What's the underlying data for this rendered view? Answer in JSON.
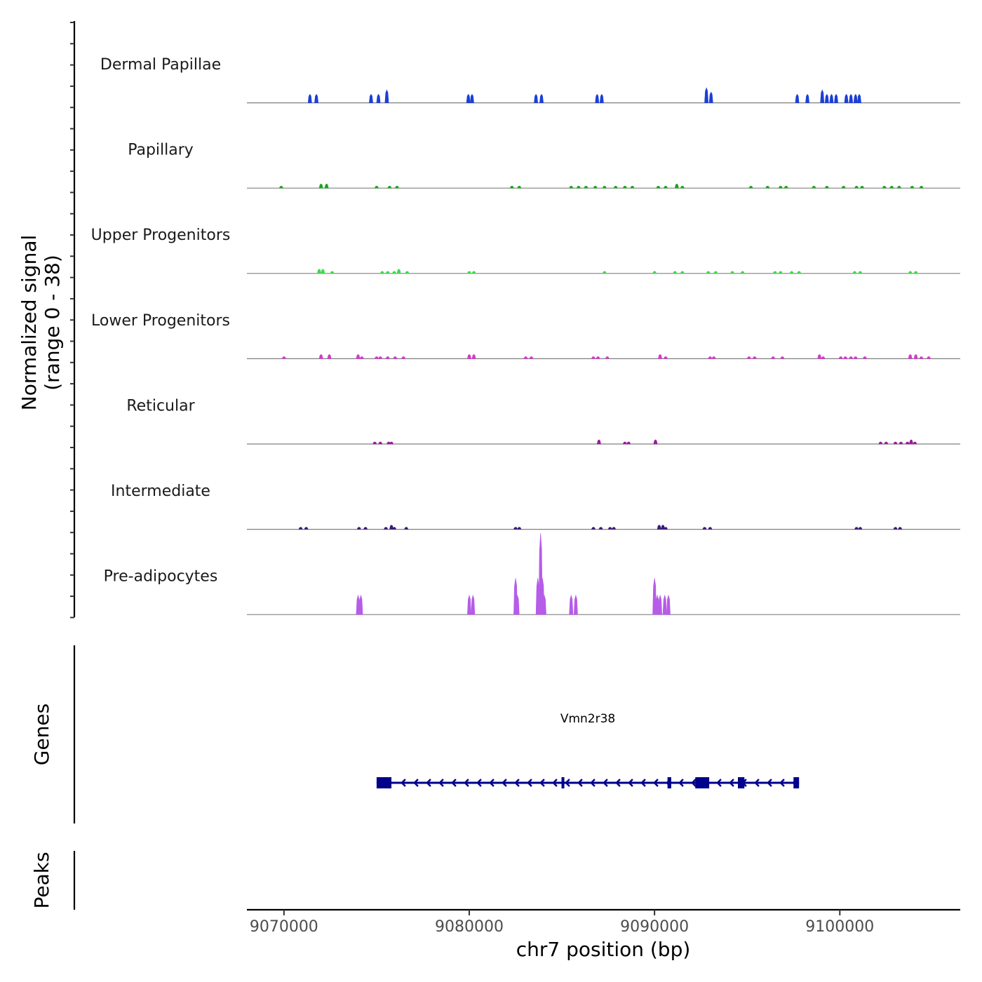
{
  "chart_data": {
    "type": "coverage",
    "chromosome": "chr7",
    "region": [
      9068000,
      9106500
    ],
    "signal_axis": {
      "title_line1": "Normalized signal",
      "title_line2": "(range 0 - 38)",
      "ylim": [
        0,
        38
      ]
    },
    "tracks": [
      {
        "name": "Dermal Papillae",
        "color": "#1c3fd6",
        "peaks": [
          [
            9071400,
            4
          ],
          [
            9071750,
            4
          ],
          [
            9074700,
            4
          ],
          [
            9075100,
            4
          ],
          [
            9075550,
            6
          ],
          [
            9079950,
            4
          ],
          [
            9080150,
            4
          ],
          [
            9083600,
            4
          ],
          [
            9083900,
            4
          ],
          [
            9086900,
            4
          ],
          [
            9087150,
            4
          ],
          [
            9092800,
            7
          ],
          [
            9093050,
            5
          ],
          [
            9097700,
            4
          ],
          [
            9098250,
            4
          ],
          [
            9099050,
            6
          ],
          [
            9099300,
            4
          ],
          [
            9099550,
            4
          ],
          [
            9099800,
            4
          ],
          [
            9100350,
            4
          ],
          [
            9100600,
            4
          ],
          [
            9100850,
            4
          ],
          [
            9101050,
            4
          ]
        ]
      },
      {
        "name": "Papillary",
        "color": "#1fa31f",
        "peaks": [
          [
            9069850,
            1
          ],
          [
            9072000,
            2
          ],
          [
            9072300,
            2
          ],
          [
            9075000,
            1
          ],
          [
            9075700,
            1
          ],
          [
            9076100,
            1
          ],
          [
            9082300,
            1
          ],
          [
            9082700,
            1
          ],
          [
            9085500,
            1
          ],
          [
            9085900,
            1
          ],
          [
            9086300,
            1
          ],
          [
            9086800,
            1
          ],
          [
            9087300,
            1
          ],
          [
            9087900,
            1
          ],
          [
            9088400,
            1
          ],
          [
            9088800,
            1
          ],
          [
            9090200,
            1
          ],
          [
            9090600,
            1
          ],
          [
            9091200,
            2
          ],
          [
            9091500,
            1
          ],
          [
            9095200,
            1
          ],
          [
            9096100,
            1
          ],
          [
            9096800,
            1
          ],
          [
            9097100,
            1
          ],
          [
            9098600,
            1
          ],
          [
            9099300,
            1
          ],
          [
            9100200,
            1
          ],
          [
            9100900,
            1
          ],
          [
            9101200,
            1
          ],
          [
            9102400,
            1
          ],
          [
            9102800,
            1
          ],
          [
            9103200,
            1
          ],
          [
            9103900,
            1
          ],
          [
            9104400,
            1
          ]
        ]
      },
      {
        "name": "Upper Progenitors",
        "color": "#3dd94a",
        "peaks": [
          [
            9071900,
            2
          ],
          [
            9072100,
            2
          ],
          [
            9072600,
            1
          ],
          [
            9075300,
            1
          ],
          [
            9075600,
            1
          ],
          [
            9075950,
            1
          ],
          [
            9076200,
            2
          ],
          [
            9076650,
            1
          ],
          [
            9080000,
            1
          ],
          [
            9080250,
            1
          ],
          [
            9087300,
            1
          ],
          [
            9090000,
            1
          ],
          [
            9091100,
            1
          ],
          [
            9091500,
            1
          ],
          [
            9092900,
            1
          ],
          [
            9093300,
            1
          ],
          [
            9094200,
            1
          ],
          [
            9094750,
            1
          ],
          [
            9096500,
            1
          ],
          [
            9096800,
            1
          ],
          [
            9097400,
            1
          ],
          [
            9097800,
            1
          ],
          [
            9100800,
            1
          ],
          [
            9101100,
            1
          ],
          [
            9103800,
            1
          ],
          [
            9104100,
            1
          ]
        ]
      },
      {
        "name": "Lower Progenitors",
        "color": "#d63ac9",
        "peaks": [
          [
            9070000,
            1
          ],
          [
            9072000,
            2
          ],
          [
            9072450,
            2
          ],
          [
            9074000,
            2
          ],
          [
            9074200,
            1
          ],
          [
            9075000,
            1
          ],
          [
            9075200,
            1
          ],
          [
            9075600,
            1
          ],
          [
            9076000,
            1
          ],
          [
            9076450,
            1
          ],
          [
            9080000,
            2
          ],
          [
            9080250,
            2
          ],
          [
            9083050,
            1
          ],
          [
            9083350,
            1
          ],
          [
            9086700,
            1
          ],
          [
            9086950,
            1
          ],
          [
            9087450,
            1
          ],
          [
            9090300,
            2
          ],
          [
            9090600,
            1
          ],
          [
            9093000,
            1
          ],
          [
            9093200,
            1
          ],
          [
            9095100,
            1
          ],
          [
            9095400,
            1
          ],
          [
            9096400,
            1
          ],
          [
            9096900,
            1
          ],
          [
            9098900,
            2
          ],
          [
            9099100,
            1
          ],
          [
            9100050,
            1
          ],
          [
            9100300,
            1
          ],
          [
            9100600,
            1
          ],
          [
            9100850,
            1
          ],
          [
            9101350,
            1
          ],
          [
            9103800,
            2
          ],
          [
            9104100,
            2
          ],
          [
            9104400,
            1
          ],
          [
            9104800,
            1
          ]
        ]
      },
      {
        "name": "Reticular",
        "color": "#9a1a9a",
        "peaks": [
          [
            9074900,
            1
          ],
          [
            9075200,
            1
          ],
          [
            9075650,
            1
          ],
          [
            9075800,
            1
          ],
          [
            9087000,
            2
          ],
          [
            9088400,
            1
          ],
          [
            9088600,
            1
          ],
          [
            9090050,
            2
          ],
          [
            9102200,
            1
          ],
          [
            9102500,
            1
          ],
          [
            9103000,
            1
          ],
          [
            9103300,
            1
          ],
          [
            9103650,
            1
          ],
          [
            9103850,
            2
          ],
          [
            9104050,
            1
          ]
        ]
      },
      {
        "name": "Intermediate",
        "color": "#3a1a78",
        "peaks": [
          [
            9070900,
            1
          ],
          [
            9071200,
            1
          ],
          [
            9074050,
            1
          ],
          [
            9074400,
            1
          ],
          [
            9075500,
            1
          ],
          [
            9075800,
            2
          ],
          [
            9075950,
            1
          ],
          [
            9076600,
            1
          ],
          [
            9082500,
            1
          ],
          [
            9082700,
            1
          ],
          [
            9086700,
            1
          ],
          [
            9087100,
            1
          ],
          [
            9087600,
            1
          ],
          [
            9087800,
            1
          ],
          [
            9090250,
            2
          ],
          [
            9090450,
            2
          ],
          [
            9090600,
            1
          ],
          [
            9092700,
            1
          ],
          [
            9093000,
            1
          ],
          [
            9100900,
            1
          ],
          [
            9101100,
            1
          ],
          [
            9103000,
            1
          ],
          [
            9103250,
            1
          ]
        ]
      },
      {
        "name": "Pre-adipocytes",
        "color": "#b65ce8",
        "peaks": [
          [
            9074000,
            9
          ],
          [
            9074150,
            9
          ],
          [
            9080000,
            9
          ],
          [
            9080200,
            9
          ],
          [
            9082500,
            17
          ],
          [
            9082600,
            9
          ],
          [
            9083700,
            17
          ],
          [
            9083850,
            38
          ],
          [
            9083950,
            17
          ],
          [
            9084050,
            9
          ],
          [
            9085500,
            9
          ],
          [
            9085750,
            9
          ],
          [
            9090000,
            17
          ],
          [
            9090150,
            9
          ],
          [
            9090300,
            9
          ],
          [
            9090550,
            9
          ],
          [
            9090750,
            9
          ]
        ]
      }
    ],
    "genes": {
      "track_title": "Genes",
      "items": [
        {
          "name": "Vmn2r38",
          "strand": "-",
          "start": 9075000,
          "end": 9097800,
          "color": "#00008b",
          "exons": [
            [
              9075000,
              9075800
            ],
            [
              9084980,
              9085070
            ],
            [
              9090700,
              9090900
            ],
            [
              9092200,
              9092950
            ],
            [
              9094500,
              9094850
            ],
            [
              9097500,
              9097800
            ]
          ]
        }
      ]
    },
    "peaks_track": {
      "track_title": "Peaks",
      "items": []
    },
    "x_axis": {
      "title": "chr7 position (bp)",
      "ticks": [
        9070000,
        9080000,
        9090000,
        9100000
      ],
      "tick_labels": [
        "9070000",
        "9080000",
        "9090000",
        "9100000"
      ]
    }
  }
}
